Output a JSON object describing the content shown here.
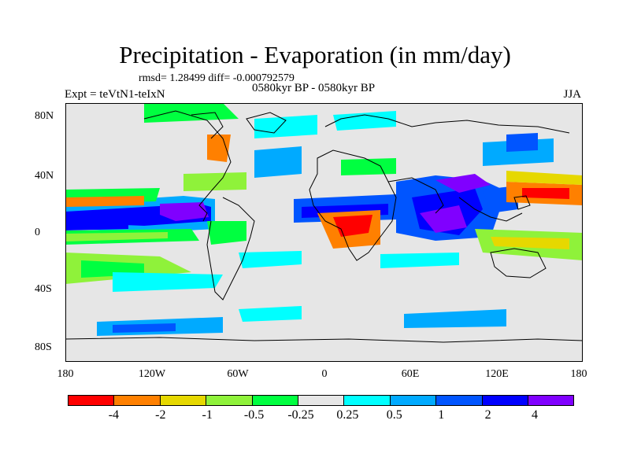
{
  "title": "Precipitation - Evaporation (in mm/day)",
  "stats": "rmsd= 1.28499 diff= -0.000792579",
  "period": "0580kyr BP - 0580kyr BP",
  "experiment": "Expt = teVtN1-teIxN",
  "season": "JJA",
  "y_ticks": [
    "80N",
    "40N",
    "0",
    "40S",
    "80S"
  ],
  "x_ticks": [
    "180",
    "120W",
    "60W",
    "0",
    "60E",
    "120E",
    "180"
  ],
  "colorbar": {
    "colors": [
      "#ff0000",
      "#ff8000",
      "#e6d800",
      "#8ff23a",
      "#00ff40",
      "#e6e6e6",
      "#00ffff",
      "#00aaff",
      "#0055ff",
      "#0000ff",
      "#8000ff"
    ],
    "labels": [
      "-4",
      "-2",
      "-1",
      "-0.5",
      "-0.25",
      "0.25",
      "0.5",
      "1",
      "2",
      "4"
    ]
  },
  "background_color": "#e6e6e6",
  "coastline_color": "#000000"
}
